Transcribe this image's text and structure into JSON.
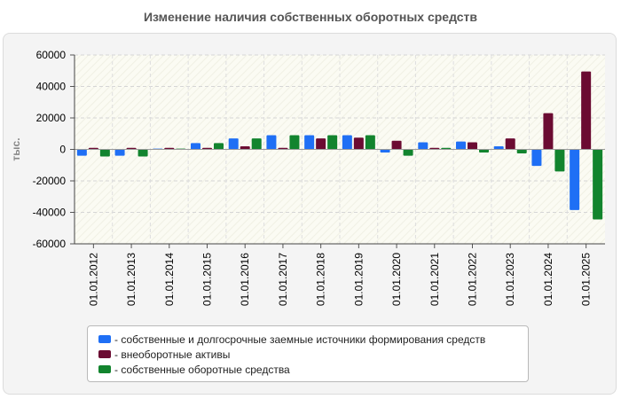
{
  "chart_data": {
    "type": "bar",
    "title": "Изменение наличия собственных оборотных средств",
    "ylabel": "тыс.",
    "xlabel": "",
    "ylim": [
      -60000,
      60000
    ],
    "yticks": [
      60000,
      40000,
      20000,
      0,
      -20000,
      -40000,
      -60000
    ],
    "grid": true,
    "legend_position": "bottom",
    "categories": [
      "01.01.2012",
      "01.01.2013",
      "01.01.2014",
      "01.01.2015",
      "01.01.2016",
      "01.01.2017",
      "01.01.2018",
      "01.01.2019",
      "01.01.2020",
      "01.01.2021",
      "01.01.2022",
      "01.01.2023",
      "01.01.2024",
      "01.01.2025"
    ],
    "series": [
      {
        "name": "- собственные и долгосрочные заемные источники формирования средств",
        "color": "#1f6ff5",
        "values": [
          -4000,
          -4000,
          500,
          4000,
          7000,
          9000,
          9000,
          9000,
          -2000,
          4500,
          5000,
          2000,
          -10500,
          -38500
        ]
      },
      {
        "name": "- внеоборотные активы",
        "color": "#6b0b32",
        "values": [
          1000,
          1000,
          1000,
          1000,
          2000,
          1000,
          7000,
          7500,
          5500,
          1000,
          4500,
          7000,
          23000,
          49500
        ]
      },
      {
        "name": "- собственные оборотные средства",
        "color": "#12842e",
        "values": [
          -4500,
          -4500,
          500,
          4000,
          7000,
          9000,
          9000,
          9000,
          -4000,
          1000,
          -2000,
          -2500,
          -14000,
          -44500
        ]
      }
    ]
  }
}
